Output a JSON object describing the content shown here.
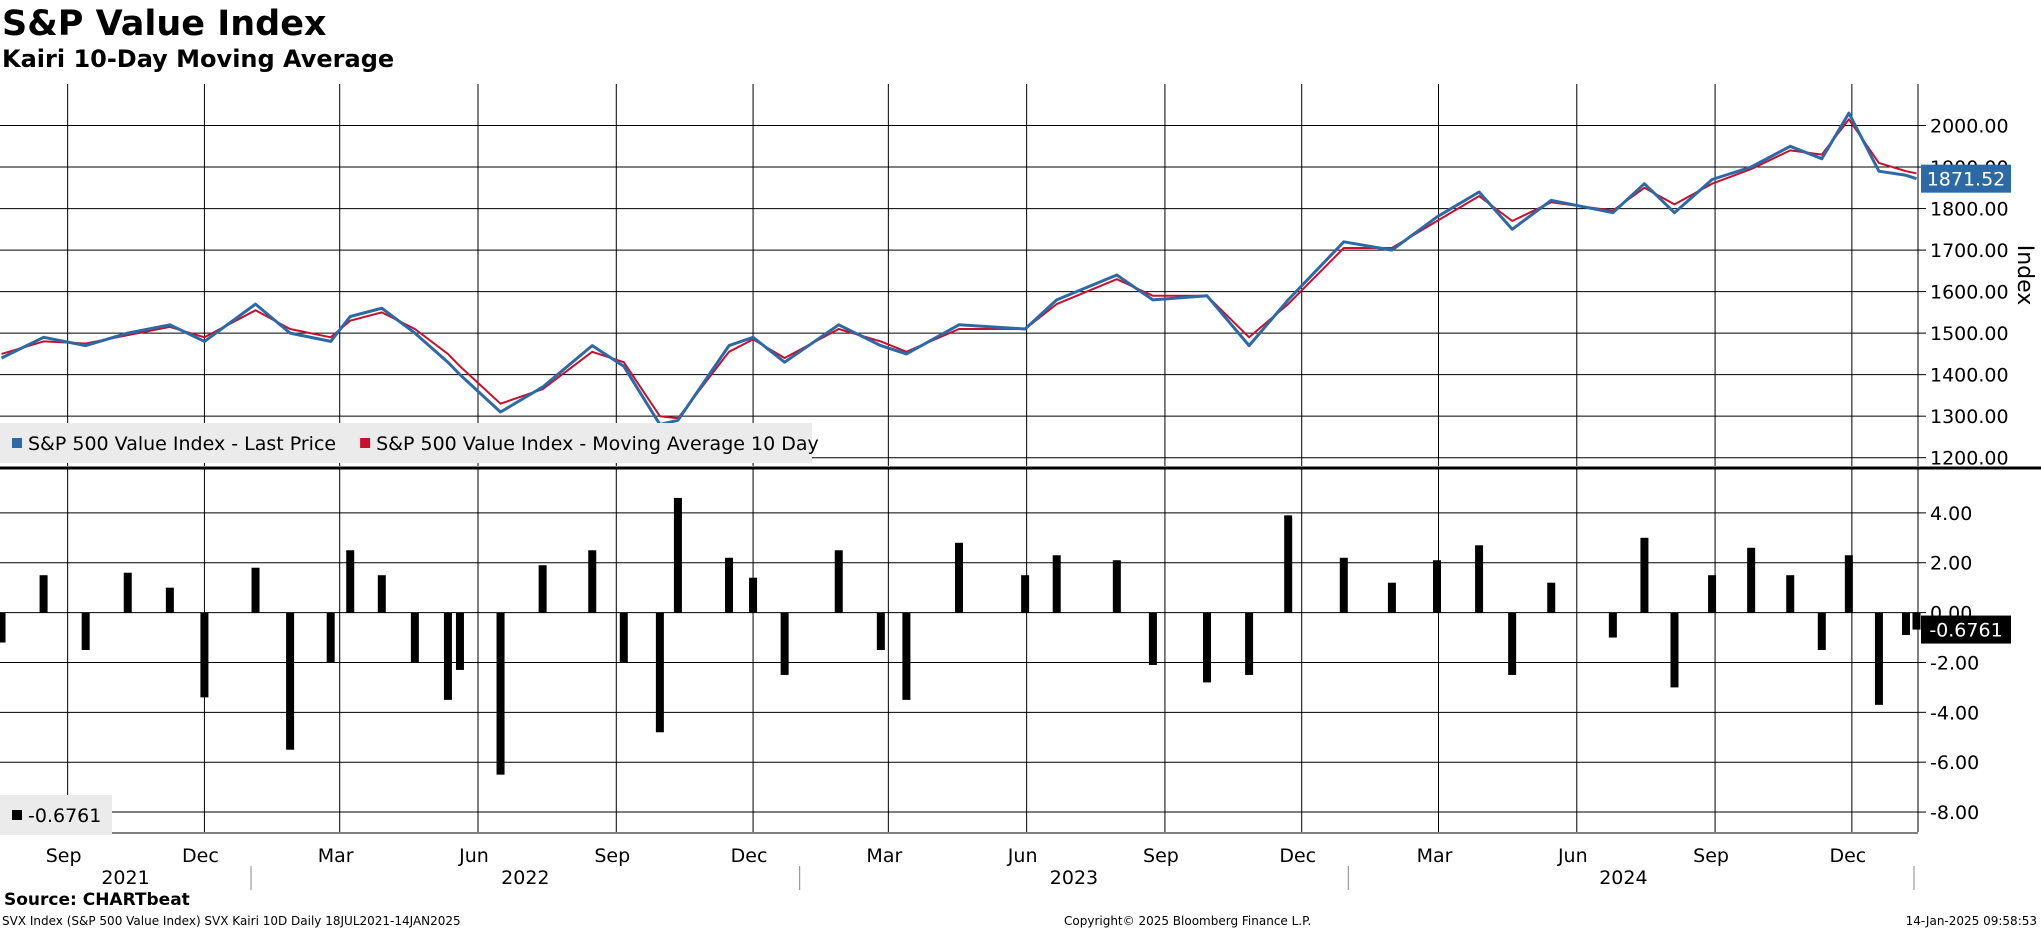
{
  "header": {
    "title": "S&P Value Index",
    "subtitle": "Kairi 10-Day Moving Average"
  },
  "footer": {
    "source": "Source: CHARTbeat",
    "ticker_info": "SVX Index (S&P 500 Value Index) SVX Kairi 10D  Daily 18JUL2021-14JAN2025",
    "copyright": "Copyright© 2025 Bloomberg Finance L.P.",
    "timestamp": "14-Jan-2025 09:58:53"
  },
  "colors": {
    "price": "#2b6aa6",
    "ma": "#c8102e",
    "kairi": "#000000",
    "grid": "#000000"
  },
  "chart_data": [
    {
      "type": "line",
      "ylabel": "Index",
      "ylim": [
        1180,
        2100
      ],
      "yticks": [
        "1200.00",
        "1300.00",
        "1400.00",
        "1500.00",
        "1600.00",
        "1700.00",
        "1800.00",
        "1900.00",
        "2000.00"
      ],
      "last_value_label": "1871.52",
      "legend": [
        "S&P 500 Value Index - Last Price",
        "S&P 500 Value Index - Moving Average 10 Day"
      ],
      "legend_position": "bottom-left",
      "grid": true,
      "series": [
        {
          "name": "S&P 500 Value Index - Last Price",
          "x": [
            "2021-07-19",
            "2021-08-16",
            "2021-09-13",
            "2021-10-11",
            "2021-11-08",
            "2021-12-01",
            "2022-01-04",
            "2022-01-27",
            "2022-02-23",
            "2022-03-08",
            "2022-03-29",
            "2022-04-20",
            "2022-05-12",
            "2022-05-20",
            "2022-06-16",
            "2022-07-14",
            "2022-08-16",
            "2022-09-06",
            "2022-09-30",
            "2022-10-12",
            "2022-11-15",
            "2022-12-01",
            "2022-12-22",
            "2023-01-27",
            "2023-02-24",
            "2023-03-13",
            "2023-04-17",
            "2023-05-31",
            "2023-06-21",
            "2023-07-31",
            "2023-08-24",
            "2023-09-29",
            "2023-10-27",
            "2023-11-22",
            "2023-12-29",
            "2024-01-30",
            "2024-02-29",
            "2024-03-28",
            "2024-04-19",
            "2024-05-15",
            "2024-06-25",
            "2024-07-16",
            "2024-08-05",
            "2024-08-30",
            "2024-09-25",
            "2024-10-21",
            "2024-11-11",
            "2024-11-29",
            "2024-12-19",
            "2025-01-06",
            "2025-01-13"
          ],
          "values": [
            1440,
            1490,
            1470,
            1500,
            1520,
            1480,
            1570,
            1500,
            1480,
            1540,
            1560,
            1500,
            1430,
            1400,
            1310,
            1370,
            1470,
            1420,
            1280,
            1290,
            1470,
            1490,
            1430,
            1520,
            1470,
            1450,
            1520,
            1510,
            1580,
            1640,
            1580,
            1590,
            1470,
            1580,
            1720,
            1700,
            1780,
            1840,
            1750,
            1820,
            1790,
            1860,
            1790,
            1870,
            1900,
            1950,
            1920,
            2030,
            1890,
            1880,
            1872
          ]
        },
        {
          "name": "S&P 500 Value Index - Moving Average 10 Day",
          "x": [
            "2021-07-19",
            "2021-08-16",
            "2021-09-13",
            "2021-10-11",
            "2021-11-08",
            "2021-12-01",
            "2022-01-04",
            "2022-01-27",
            "2022-02-23",
            "2022-03-08",
            "2022-03-29",
            "2022-04-20",
            "2022-05-12",
            "2022-05-20",
            "2022-06-16",
            "2022-07-14",
            "2022-08-16",
            "2022-09-06",
            "2022-09-30",
            "2022-10-12",
            "2022-11-15",
            "2022-12-01",
            "2022-12-22",
            "2023-01-27",
            "2023-02-24",
            "2023-03-13",
            "2023-04-17",
            "2023-05-31",
            "2023-06-21",
            "2023-07-31",
            "2023-08-24",
            "2023-09-29",
            "2023-10-27",
            "2023-11-22",
            "2023-12-29",
            "2024-01-30",
            "2024-02-29",
            "2024-03-28",
            "2024-04-19",
            "2024-05-15",
            "2024-06-25",
            "2024-07-16",
            "2024-08-05",
            "2024-08-30",
            "2024-09-25",
            "2024-10-21",
            "2024-11-11",
            "2024-11-29",
            "2024-12-19",
            "2025-01-06",
            "2025-01-13"
          ],
          "values": [
            1450,
            1480,
            1475,
            1495,
            1515,
            1490,
            1555,
            1510,
            1490,
            1530,
            1550,
            1510,
            1450,
            1420,
            1330,
            1365,
            1455,
            1430,
            1300,
            1295,
            1455,
            1485,
            1440,
            1510,
            1480,
            1455,
            1510,
            1510,
            1570,
            1630,
            1590,
            1590,
            1490,
            1570,
            1705,
            1705,
            1770,
            1830,
            1770,
            1815,
            1795,
            1850,
            1810,
            1860,
            1895,
            1940,
            1930,
            2015,
            1910,
            1890,
            1885
          ]
        }
      ]
    },
    {
      "type": "bar",
      "ylim": [
        -8.8,
        5.8
      ],
      "yticks": [
        "-8.00",
        "-6.00",
        "-4.00",
        "-2.00",
        "0.00",
        "2.00",
        "4.00"
      ],
      "last_value_label": "-0.6761",
      "legend": [
        "-0.6761"
      ],
      "legend_position": "bottom-left",
      "grid": true,
      "series": [
        {
          "name": "-0.6761",
          "x": [
            "2021-07-19",
            "2021-08-16",
            "2021-09-13",
            "2021-10-11",
            "2021-11-08",
            "2021-12-01",
            "2022-01-04",
            "2022-01-27",
            "2022-02-23",
            "2022-03-08",
            "2022-03-29",
            "2022-04-20",
            "2022-05-12",
            "2022-05-20",
            "2022-06-16",
            "2022-07-14",
            "2022-08-16",
            "2022-09-06",
            "2022-09-30",
            "2022-10-12",
            "2022-11-15",
            "2022-12-01",
            "2022-12-22",
            "2023-01-27",
            "2023-02-24",
            "2023-03-13",
            "2023-04-17",
            "2023-05-31",
            "2023-06-21",
            "2023-07-31",
            "2023-08-24",
            "2023-09-29",
            "2023-10-27",
            "2023-11-22",
            "2023-12-29",
            "2024-01-30",
            "2024-02-29",
            "2024-03-28",
            "2024-04-19",
            "2024-05-15",
            "2024-06-25",
            "2024-07-16",
            "2024-08-05",
            "2024-08-30",
            "2024-09-25",
            "2024-10-21",
            "2024-11-11",
            "2024-11-29",
            "2024-12-19",
            "2025-01-06",
            "2025-01-13"
          ],
          "values": [
            -1.2,
            1.5,
            -1.5,
            1.6,
            1.0,
            -3.4,
            1.8,
            -5.5,
            -2.0,
            2.5,
            1.5,
            -2.0,
            -3.5,
            -2.3,
            -6.5,
            1.9,
            2.5,
            -2.0,
            -4.8,
            4.6,
            2.2,
            1.4,
            -2.5,
            2.5,
            -1.5,
            -3.5,
            2.8,
            1.5,
            2.3,
            2.1,
            -2.1,
            -2.8,
            -2.5,
            3.9,
            2.2,
            1.2,
            2.1,
            2.7,
            -2.5,
            1.2,
            -1.0,
            3.0,
            -3.0,
            1.5,
            2.6,
            1.5,
            -1.5,
            2.3,
            -3.7,
            -0.9,
            -0.68
          ]
        }
      ]
    }
  ],
  "x_axis": {
    "month_ticks": [
      {
        "label": "Sep",
        "date": "2021-09-01"
      },
      {
        "label": "Dec",
        "date": "2021-12-01"
      },
      {
        "label": "Mar",
        "date": "2022-03-01"
      },
      {
        "label": "Jun",
        "date": "2022-06-01"
      },
      {
        "label": "Sep",
        "date": "2022-09-01"
      },
      {
        "label": "Dec",
        "date": "2022-12-01"
      },
      {
        "label": "Mar",
        "date": "2023-03-01"
      },
      {
        "label": "Jun",
        "date": "2023-06-01"
      },
      {
        "label": "Sep",
        "date": "2023-09-01"
      },
      {
        "label": "Dec",
        "date": "2023-12-01"
      },
      {
        "label": "Mar",
        "date": "2024-03-01"
      },
      {
        "label": "Jun",
        "date": "2024-06-01"
      },
      {
        "label": "Sep",
        "date": "2024-09-01"
      },
      {
        "label": "Dec",
        "date": "2024-12-01"
      }
    ],
    "years": [
      {
        "label": "2021",
        "from": "2021-07-18",
        "to": "2022-01-01"
      },
      {
        "label": "2022",
        "from": "2022-01-01",
        "to": "2023-01-01"
      },
      {
        "label": "2023",
        "from": "2023-01-01",
        "to": "2024-01-01"
      },
      {
        "label": "2024",
        "from": "2024-01-01",
        "to": "2025-01-01"
      }
    ],
    "start": "2021-07-18",
    "end": "2025-01-14"
  }
}
